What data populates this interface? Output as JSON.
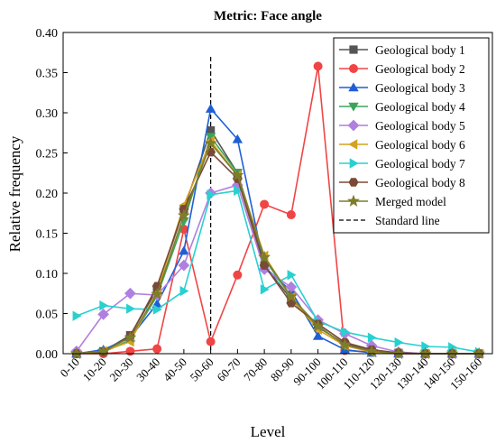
{
  "chart_data": {
    "type": "line",
    "title": "Metric: Face angle",
    "xlabel": "Level",
    "ylabel": "Relative frequency",
    "ylim": [
      0,
      0.4
    ],
    "yticks": [
      "0.00",
      "0.05",
      "0.10",
      "0.15",
      "0.20",
      "0.25",
      "0.30",
      "0.35",
      "0.40"
    ],
    "categories": [
      "0-10",
      "10-20",
      "20-30",
      "30-40",
      "40-50",
      "50-60",
      "60-70",
      "70-80",
      "80-90",
      "90-100",
      "100-110",
      "110-120",
      "120-130",
      "130-140",
      "140-150",
      "150-160"
    ],
    "legend_position": "top-right",
    "reference_line": {
      "name": "Standard line",
      "category": "50-60",
      "style": "dashed",
      "color": "#000000"
    },
    "series": [
      {
        "name": "Geological body 1",
        "color": "#555555",
        "marker": "square",
        "values": [
          0.0,
          0.003,
          0.023,
          0.08,
          0.18,
          0.278,
          0.225,
          0.11,
          0.068,
          0.033,
          0.012,
          0.004,
          0.001,
          0.0,
          0.0,
          0.0
        ]
      },
      {
        "name": "Geological body 2",
        "color": "#f04545",
        "marker": "circle",
        "values": [
          0.0,
          0.0,
          0.003,
          0.006,
          0.155,
          0.015,
          0.098,
          0.186,
          0.173,
          0.358,
          0.004,
          0.002,
          0.0,
          0.0,
          0.0,
          0.0
        ]
      },
      {
        "name": "Geological body 3",
        "color": "#1f5fd6",
        "marker": "triangle-up",
        "values": [
          0.0,
          0.005,
          0.02,
          0.062,
          0.128,
          0.305,
          0.267,
          0.108,
          0.078,
          0.022,
          0.005,
          0.001,
          0.0,
          0.0,
          0.0,
          0.0
        ]
      },
      {
        "name": "Geological body 4",
        "color": "#3aa55a",
        "marker": "triangle-down",
        "values": [
          0.0,
          0.002,
          0.017,
          0.072,
          0.165,
          0.27,
          0.225,
          0.118,
          0.07,
          0.035,
          0.01,
          0.003,
          0.0,
          0.0,
          0.0,
          0.0
        ]
      },
      {
        "name": "Geological body 5",
        "color": "#b07fe0",
        "marker": "diamond",
        "values": [
          0.003,
          0.049,
          0.075,
          0.073,
          0.11,
          0.2,
          0.21,
          0.105,
          0.083,
          0.042,
          0.025,
          0.01,
          0.002,
          0.0,
          0.0,
          0.0
        ]
      },
      {
        "name": "Geological body 6",
        "color": "#d4a21e",
        "marker": "triangle-left",
        "values": [
          0.0,
          0.003,
          0.015,
          0.077,
          0.185,
          0.265,
          0.222,
          0.122,
          0.07,
          0.03,
          0.01,
          0.002,
          0.0,
          0.0,
          0.0,
          0.0
        ]
      },
      {
        "name": "Geological body 7",
        "color": "#29d0d0",
        "marker": "triangle-right",
        "values": [
          0.047,
          0.06,
          0.056,
          0.055,
          0.078,
          0.198,
          0.203,
          0.08,
          0.098,
          0.04,
          0.027,
          0.02,
          0.014,
          0.009,
          0.008,
          0.002
        ]
      },
      {
        "name": "Geological body 8",
        "color": "#7a4a36",
        "marker": "hexagon",
        "values": [
          0.0,
          0.002,
          0.022,
          0.084,
          0.18,
          0.251,
          0.218,
          0.11,
          0.063,
          0.037,
          0.014,
          0.005,
          0.001,
          0.0,
          0.0,
          0.0
        ]
      },
      {
        "name": "Merged model",
        "color": "#7d7d2a",
        "marker": "star",
        "values": [
          0.0,
          0.003,
          0.02,
          0.074,
          0.172,
          0.262,
          0.222,
          0.12,
          0.071,
          0.034,
          0.011,
          0.003,
          0.0,
          0.0,
          0.0,
          0.0
        ]
      }
    ]
  }
}
